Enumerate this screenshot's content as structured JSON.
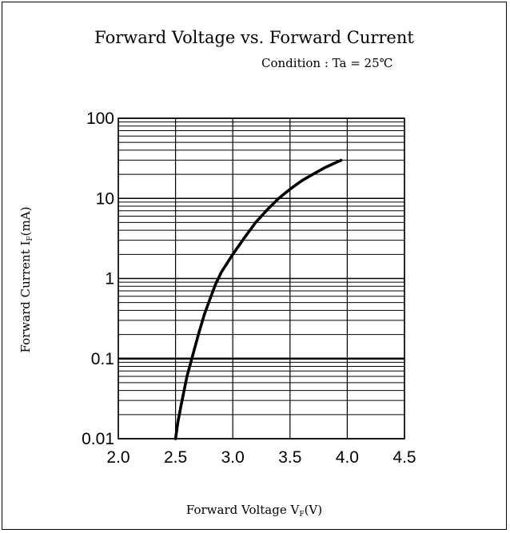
{
  "chart_data": {
    "type": "line",
    "title": "Forward Voltage vs. Forward Current",
    "subtitle": "Condition : Ta = 25℃",
    "xlabel": {
      "main": "Forward Voltage  V",
      "sub": "F",
      "unit": "(V)"
    },
    "ylabel": {
      "main": "Forward Current  I",
      "sub": "F",
      "unit": "(mA)"
    },
    "xlim": [
      2.0,
      4.5
    ],
    "ylim": [
      0.01,
      100
    ],
    "yscale": "log",
    "grid": true,
    "x_ticks": [
      "2.0",
      "2.5",
      "3.0",
      "3.5",
      "4.0",
      "4.5"
    ],
    "y_ticks": [
      "0.01",
      "0.1",
      "1",
      "10",
      "100"
    ],
    "series": [
      {
        "x": [
          2.5,
          2.52,
          2.55,
          2.6,
          2.65,
          2.7,
          2.75,
          2.8,
          2.85,
          2.9,
          3.0,
          3.1,
          3.2,
          3.3,
          3.4,
          3.5,
          3.6,
          3.7,
          3.8,
          3.9,
          3.95
        ],
        "y": [
          0.01,
          0.016,
          0.027,
          0.06,
          0.11,
          0.2,
          0.35,
          0.55,
          0.85,
          1.2,
          2.0,
          3.2,
          5.0,
          7.2,
          10,
          13,
          16.5,
          20,
          24,
          28,
          30
        ]
      }
    ]
  }
}
